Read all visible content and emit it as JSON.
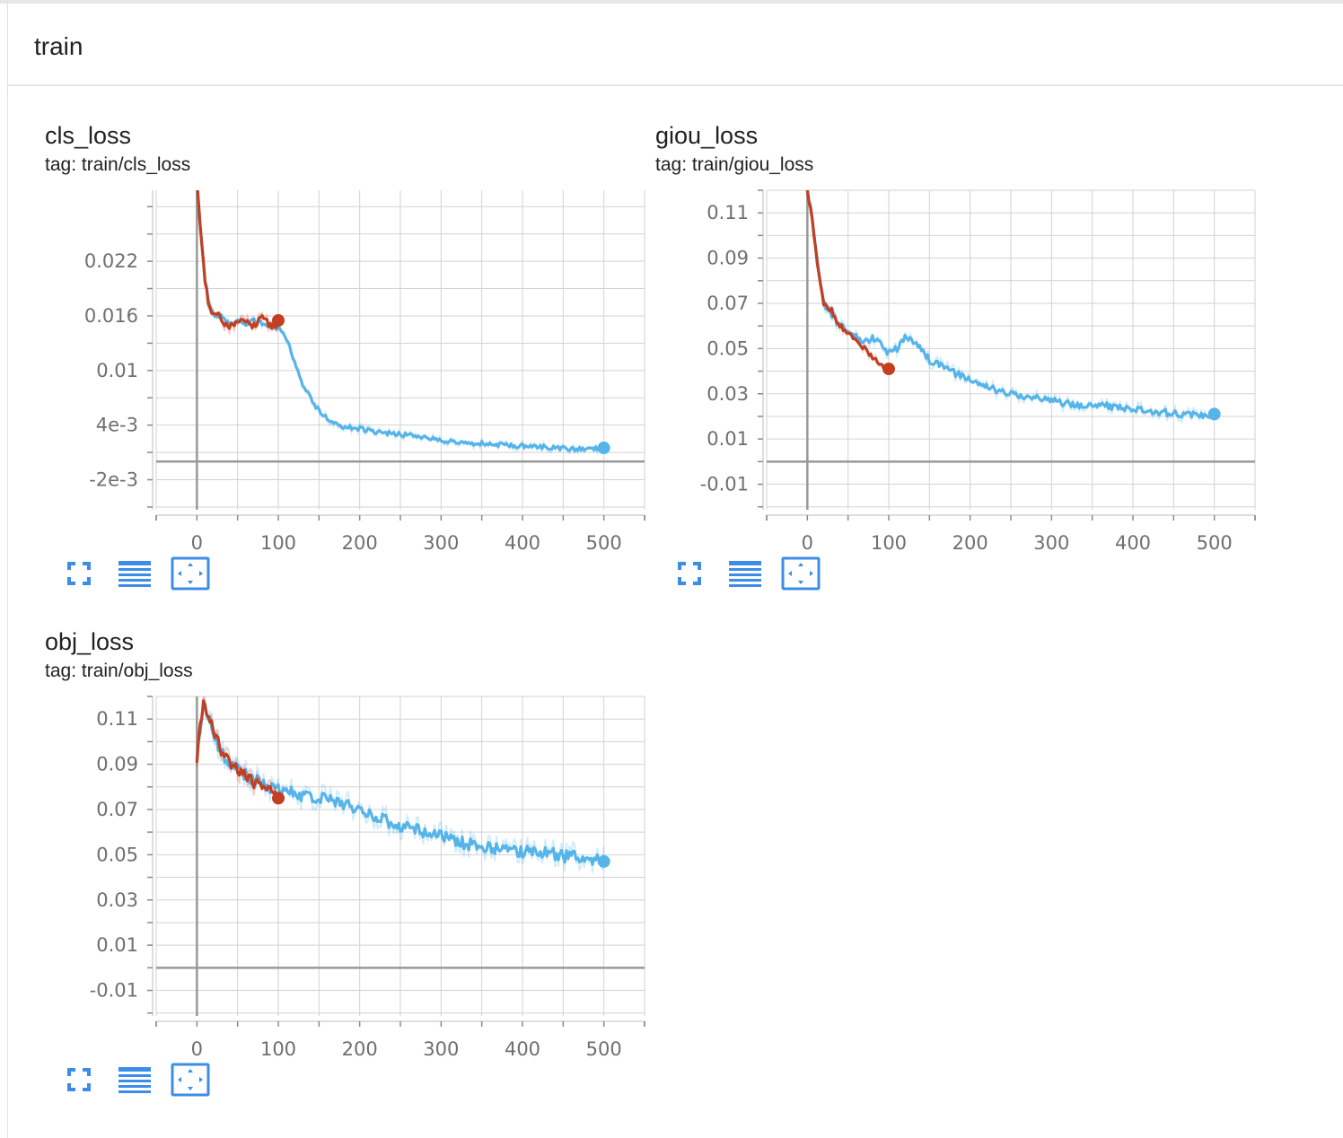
{
  "group": {
    "title": "train"
  },
  "colors": {
    "run_train": "#c23f22",
    "run_val": "#55b4ea",
    "accent": "#3b8de8",
    "grid": "#d2d2d2",
    "axis": "#999999"
  },
  "icons": {
    "fit": "fullscreen-icon",
    "log": "data-table-icon",
    "zoom": "fit-domain-icon"
  },
  "chart_data": [
    {
      "type": "line",
      "title": "cls_loss",
      "tag": "tag: train/cls_loss",
      "xlim": [
        -50,
        550
      ],
      "ylim": [
        -0.0053,
        0.0298
      ],
      "x_ticks": [
        0,
        100,
        200,
        300,
        400,
        500
      ],
      "y_ticks": [
        -0.002,
        0.004,
        0.01,
        0.016,
        0.022
      ],
      "y_tick_labels": [
        "-2e-3",
        "4e-3",
        "0.01",
        "0.016",
        "0.022"
      ],
      "grid": true,
      "series": [
        {
          "color": "#55b4ea",
          "noise": 0.00025,
          "seed": 11,
          "x": [
            0,
            5,
            10,
            15,
            20,
            30,
            40,
            50,
            60,
            70,
            80,
            90,
            100,
            110,
            120,
            130,
            140,
            150,
            160,
            170,
            180,
            200,
            220,
            250,
            280,
            300,
            330,
            360,
            400,
            430,
            460,
            480,
            500
          ],
          "y": [
            0.031,
            0.025,
            0.02,
            0.0175,
            0.016,
            0.016,
            0.015,
            0.0155,
            0.015,
            0.0155,
            0.0152,
            0.015,
            0.0147,
            0.0135,
            0.011,
            0.0085,
            0.007,
            0.0055,
            0.0048,
            0.0043,
            0.0038,
            0.0036,
            0.0032,
            0.003,
            0.0027,
            0.0023,
            0.0021,
            0.0019,
            0.0017,
            0.0016,
            0.0014,
            0.0014,
            0.0015
          ]
        },
        {
          "color": "#c23f22",
          "noise": 0.0004,
          "seed": 5,
          "x": [
            0,
            5,
            10,
            15,
            20,
            25,
            30,
            40,
            50,
            60,
            70,
            80,
            90,
            95,
            100
          ],
          "y": [
            0.031,
            0.025,
            0.02,
            0.017,
            0.016,
            0.0165,
            0.0155,
            0.015,
            0.0155,
            0.0152,
            0.0148,
            0.0158,
            0.015,
            0.0147,
            0.0155
          ]
        }
      ]
    },
    {
      "type": "line",
      "title": "giou_loss",
      "tag": "tag: train/giou_loss",
      "xlim": [
        -50,
        550
      ],
      "ylim": [
        -0.0213,
        0.12
      ],
      "x_ticks": [
        0,
        100,
        200,
        300,
        400,
        500
      ],
      "y_ticks": [
        -0.01,
        0.01,
        0.03,
        0.05,
        0.07,
        0.09,
        0.11
      ],
      "y_tick_labels": [
        "-0.01",
        "0.01",
        "0.03",
        "0.05",
        "0.07",
        "0.09",
        "0.11"
      ],
      "grid": true,
      "series": [
        {
          "color": "#55b4ea",
          "noise": 0.0015,
          "seed": 23,
          "x": [
            0,
            5,
            10,
            15,
            20,
            25,
            30,
            40,
            50,
            60,
            70,
            80,
            90,
            100,
            110,
            120,
            130,
            140,
            150,
            160,
            175,
            190,
            200,
            220,
            250,
            280,
            300,
            330,
            360,
            400,
            430,
            460,
            490,
            500
          ],
          "y": [
            0.12,
            0.11,
            0.095,
            0.08,
            0.07,
            0.068,
            0.065,
            0.06,
            0.058,
            0.055,
            0.053,
            0.055,
            0.052,
            0.048,
            0.05,
            0.055,
            0.053,
            0.05,
            0.045,
            0.043,
            0.04,
            0.038,
            0.036,
            0.033,
            0.03,
            0.028,
            0.027,
            0.025,
            0.025,
            0.023,
            0.022,
            0.021,
            0.02,
            0.021
          ]
        },
        {
          "color": "#c23f22",
          "noise": 0.001,
          "seed": 7,
          "x": [
            0,
            5,
            10,
            15,
            20,
            25,
            30,
            35,
            40,
            50,
            60,
            70,
            80,
            90,
            95,
            100
          ],
          "y": [
            0.12,
            0.11,
            0.095,
            0.08,
            0.07,
            0.068,
            0.067,
            0.063,
            0.06,
            0.057,
            0.053,
            0.05,
            0.046,
            0.043,
            0.041,
            0.041
          ]
        }
      ]
    },
    {
      "type": "line",
      "title": "obj_loss",
      "tag": "tag: train/obj_loss",
      "xlim": [
        -50,
        550
      ],
      "ylim": [
        -0.0213,
        0.12
      ],
      "x_ticks": [
        0,
        100,
        200,
        300,
        400,
        500
      ],
      "y_ticks": [
        -0.01,
        0.01,
        0.03,
        0.05,
        0.07,
        0.09,
        0.11
      ],
      "y_tick_labels": [
        "-0.01",
        "0.01",
        "0.03",
        "0.05",
        "0.07",
        "0.09",
        "0.11"
      ],
      "grid": true,
      "series": [
        {
          "color": "#55b4ea",
          "noise": 0.0028,
          "seed": 31,
          "x": [
            0,
            5,
            10,
            20,
            30,
            40,
            50,
            60,
            70,
            80,
            90,
            100,
            120,
            140,
            160,
            180,
            200,
            220,
            240,
            260,
            280,
            300,
            320,
            340,
            360,
            380,
            400,
            420,
            440,
            460,
            480,
            500
          ],
          "y": [
            0.092,
            0.11,
            0.115,
            0.105,
            0.095,
            0.09,
            0.088,
            0.085,
            0.083,
            0.081,
            0.08,
            0.079,
            0.077,
            0.076,
            0.074,
            0.072,
            0.07,
            0.067,
            0.064,
            0.062,
            0.06,
            0.058,
            0.056,
            0.054,
            0.053,
            0.052,
            0.051,
            0.051,
            0.05,
            0.049,
            0.049,
            0.047
          ]
        },
        {
          "color": "#c23f22",
          "noise": 0.0025,
          "seed": 3,
          "x": [
            0,
            5,
            8,
            12,
            20,
            30,
            40,
            50,
            60,
            70,
            80,
            90,
            100
          ],
          "y": [
            0.092,
            0.11,
            0.116,
            0.113,
            0.105,
            0.096,
            0.09,
            0.088,
            0.085,
            0.082,
            0.08,
            0.078,
            0.075
          ]
        }
      ]
    }
  ]
}
